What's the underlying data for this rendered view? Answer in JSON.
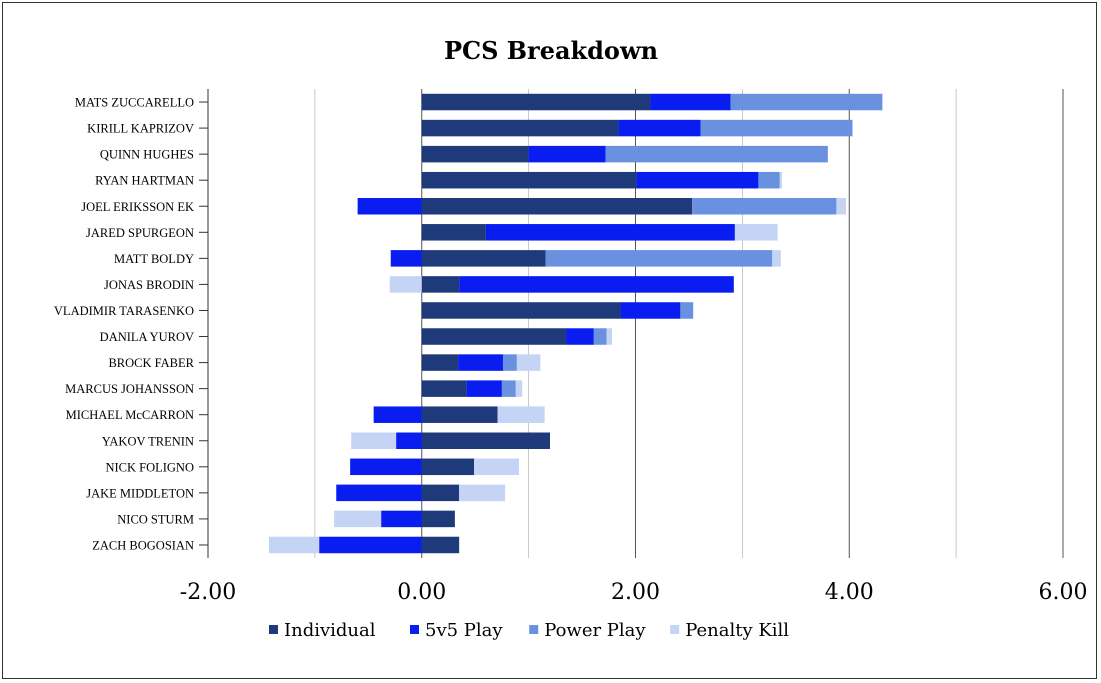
{
  "chart_data": {
    "type": "bar",
    "orientation": "horizontal",
    "stacked": true,
    "title": "PCS Breakdown",
    "xlabel": "",
    "ylabel": "",
    "xlim": [
      -2.0,
      6.0
    ],
    "xticks": [
      -2,
      0,
      2,
      4,
      6
    ],
    "xtick_labels": [
      "-2.00",
      "0.00",
      "2.00",
      "4.00",
      "6.00"
    ],
    "grid": "vertical",
    "legend_position": "bottom",
    "categories": [
      "MATS ZUCCARELLO",
      "KIRILL KAPRIZOV",
      "QUINN HUGHES",
      "RYAN HARTMAN",
      "JOEL ERIKSSON EK",
      "JARED SPURGEON",
      "MATT BOLDY",
      "JONAS BRODIN",
      "VLADIMIR TARASENKO",
      "DANILA YUROV",
      "BROCK FABER",
      "MARCUS JOHANSSON",
      "MICHAEL McCARRON",
      "YAKOV TRENIN",
      "NICK FOLIGNO",
      "JAKE MIDDLETON",
      "NICO STURM",
      "ZACH BOGOSIAN"
    ],
    "series": [
      {
        "name": "Individual",
        "color": "#1f3a7a",
        "values": [
          2.14,
          1.84,
          1.0,
          2.01,
          2.53,
          0.6,
          1.16,
          0.35,
          1.86,
          1.35,
          0.34,
          0.42,
          0.71,
          1.2,
          0.49,
          0.35,
          0.31,
          0.35
        ]
      },
      {
        "name": "5v5 Play",
        "color": "#0a1df0",
        "values": [
          0.75,
          0.77,
          0.72,
          1.14,
          -0.6,
          2.33,
          -0.29,
          2.57,
          0.56,
          0.26,
          0.42,
          0.33,
          -0.45,
          -0.24,
          -0.67,
          -0.8,
          -0.38,
          -0.96
        ]
      },
      {
        "name": "Power Play",
        "color": "#6a90e0",
        "values": [
          1.42,
          1.42,
          2.08,
          0.2,
          1.35,
          0.0,
          2.12,
          0.0,
          0.12,
          0.12,
          0.13,
          0.13,
          0.0,
          0.0,
          0.0,
          0.0,
          0.0,
          0.0
        ]
      },
      {
        "name": "Penalty Kill",
        "color": "#c5d3f5",
        "values": [
          0.0,
          0.0,
          0.0,
          0.02,
          0.09,
          0.4,
          0.08,
          -0.3,
          0.0,
          0.05,
          0.22,
          0.06,
          0.44,
          -0.42,
          0.42,
          0.43,
          -0.44,
          -0.47
        ]
      }
    ]
  }
}
